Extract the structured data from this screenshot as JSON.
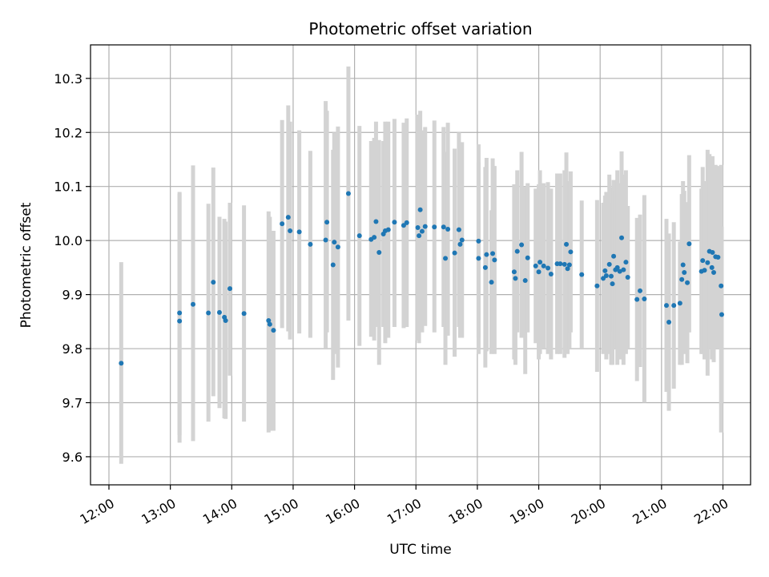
{
  "chart_data": {
    "type": "scatter",
    "title": "Photometric offset variation",
    "xlabel": "UTC time",
    "ylabel": "Photometric offset",
    "x_ticks": [
      "12:00",
      "13:00",
      "14:00",
      "15:00",
      "16:00",
      "17:00",
      "18:00",
      "19:00",
      "20:00",
      "21:00",
      "22:00"
    ],
    "y_ticks": [
      "9.6",
      "9.7",
      "9.8",
      "9.9",
      "10.0",
      "10.1",
      "10.2",
      "10.3"
    ],
    "xlim_hours": [
      11.7,
      22.45
    ],
    "ylim": [
      9.548,
      10.362
    ],
    "grid": true,
    "colors": {
      "points": "#1f77b4",
      "errorbars": "#d3d3d3",
      "grid": "#b0b0b0"
    },
    "series": [
      {
        "points": [
          [
            12.2,
            9.773,
            9.587,
            9.96
          ],
          [
            13.15,
            9.851,
            9.626,
            10.087
          ],
          [
            13.15,
            9.866,
            9.64,
            10.09
          ],
          [
            13.37,
            9.882,
            9.629,
            10.139
          ],
          [
            13.62,
            9.866,
            9.665,
            10.068
          ],
          [
            13.7,
            9.923,
            9.712,
            10.135
          ],
          [
            13.8,
            9.867,
            9.69,
            10.044
          ],
          [
            13.88,
            9.858,
            9.671,
            10.04
          ],
          [
            13.9,
            9.852,
            9.67,
            10.035
          ],
          [
            13.97,
            9.911,
            9.75,
            10.07
          ],
          [
            14.2,
            9.865,
            9.665,
            10.065
          ],
          [
            14.6,
            9.852,
            9.645,
            10.054
          ],
          [
            14.62,
            9.845,
            9.648,
            10.044
          ],
          [
            14.68,
            9.834,
            9.648,
            10.018
          ],
          [
            14.82,
            10.031,
            9.838,
            10.223
          ],
          [
            14.92,
            10.043,
            9.832,
            10.25
          ],
          [
            14.95,
            10.018,
            9.817,
            10.22
          ],
          [
            15.1,
            10.016,
            9.828,
            10.204
          ],
          [
            15.28,
            9.993,
            9.82,
            10.166
          ],
          [
            15.53,
            10.001,
            9.8,
            10.258
          ],
          [
            15.55,
            10.034,
            9.83,
            10.24
          ],
          [
            15.65,
            9.955,
            9.742,
            10.168
          ],
          [
            15.67,
            9.997,
            9.79,
            10.2
          ],
          [
            15.73,
            9.988,
            9.765,
            10.211
          ],
          [
            15.9,
            10.087,
            9.852,
            10.322
          ],
          [
            16.08,
            10.009,
            9.805,
            10.212
          ],
          [
            16.27,
            10.002,
            9.822,
            10.184
          ],
          [
            16.32,
            10.006,
            9.815,
            10.19
          ],
          [
            16.35,
            10.035,
            9.84,
            10.22
          ],
          [
            16.4,
            9.978,
            9.77,
            10.186
          ],
          [
            16.47,
            10.012,
            9.84,
            10.184
          ],
          [
            16.5,
            10.018,
            9.81,
            10.22
          ],
          [
            16.55,
            10.02,
            9.82,
            10.22
          ],
          [
            16.65,
            10.034,
            9.84,
            10.225
          ],
          [
            16.8,
            10.028,
            9.838,
            10.218
          ],
          [
            16.85,
            10.033,
            9.84,
            10.226
          ],
          [
            17.03,
            10.024,
            9.815,
            10.233
          ],
          [
            17.05,
            10.009,
            9.81,
            10.208
          ],
          [
            17.07,
            10.057,
            9.875,
            10.24
          ],
          [
            17.1,
            10.017,
            9.83,
            10.204
          ],
          [
            17.15,
            10.026,
            9.842,
            10.21
          ],
          [
            17.3,
            10.025,
            9.83,
            10.222
          ],
          [
            17.45,
            10.025,
            9.84,
            10.21
          ],
          [
            17.48,
            9.967,
            9.77,
            10.164
          ],
          [
            17.52,
            10.021,
            9.824,
            10.218
          ],
          [
            17.63,
            9.977,
            9.785,
            10.17
          ],
          [
            17.7,
            10.02,
            9.84,
            10.2
          ],
          [
            17.72,
            9.993,
            9.82,
            10.166
          ],
          [
            17.75,
            10.001,
            9.82,
            10.182
          ],
          [
            18.02,
            9.967,
            9.79,
            10.144
          ],
          [
            18.02,
            9.999,
            9.82,
            10.178
          ],
          [
            18.13,
            9.95,
            9.765,
            10.136
          ],
          [
            18.15,
            9.974,
            9.795,
            10.153
          ],
          [
            18.23,
            9.923,
            9.79,
            10.056
          ],
          [
            18.25,
            9.976,
            9.8,
            10.152
          ],
          [
            18.28,
            9.964,
            9.79,
            10.138
          ],
          [
            18.6,
            9.942,
            9.78,
            10.104
          ],
          [
            18.62,
            9.93,
            9.77,
            10.09
          ],
          [
            18.65,
            9.98,
            9.83,
            10.13
          ],
          [
            18.72,
            9.992,
            9.82,
            10.164
          ],
          [
            18.78,
            9.926,
            9.753,
            10.1
          ],
          [
            18.82,
            9.968,
            9.83,
            10.106
          ],
          [
            18.95,
            9.953,
            9.81,
            10.096
          ],
          [
            19.0,
            9.942,
            9.78,
            10.104
          ],
          [
            19.02,
            9.96,
            9.79,
            10.13
          ],
          [
            19.08,
            9.953,
            9.8,
            10.106
          ],
          [
            19.15,
            9.949,
            9.79,
            10.108
          ],
          [
            19.2,
            9.938,
            9.78,
            10.096
          ],
          [
            19.3,
            9.957,
            9.79,
            10.124
          ],
          [
            19.35,
            9.957,
            9.79,
            10.124
          ],
          [
            19.42,
            9.956,
            9.783,
            10.13
          ],
          [
            19.45,
            9.993,
            9.823,
            10.163
          ],
          [
            19.47,
            9.948,
            9.79,
            10.106
          ],
          [
            19.5,
            9.955,
            9.8,
            10.11
          ],
          [
            19.52,
            9.979,
            9.83,
            10.128
          ],
          [
            19.7,
            9.937,
            9.8,
            10.074
          ],
          [
            19.95,
            9.916,
            9.757,
            10.075
          ],
          [
            20.05,
            9.93,
            9.79,
            10.07
          ],
          [
            20.08,
            9.944,
            9.805,
            10.083
          ],
          [
            20.1,
            9.935,
            9.78,
            10.09
          ],
          [
            20.15,
            9.956,
            9.79,
            10.122
          ],
          [
            20.18,
            9.934,
            9.77,
            10.098
          ],
          [
            20.2,
            9.92,
            9.77,
            10.07
          ],
          [
            20.22,
            9.971,
            9.83,
            10.112
          ],
          [
            20.25,
            9.946,
            9.8,
            10.092
          ],
          [
            20.28,
            9.95,
            9.77,
            10.13
          ],
          [
            20.32,
            9.943,
            9.78,
            10.106
          ],
          [
            20.35,
            10.005,
            9.845,
            10.165
          ],
          [
            20.38,
            9.946,
            9.77,
            10.122
          ],
          [
            20.42,
            9.96,
            9.79,
            10.13
          ],
          [
            20.45,
            9.932,
            9.8,
            10.064
          ],
          [
            20.6,
            9.891,
            9.74,
            10.042
          ],
          [
            20.65,
            9.907,
            9.766,
            10.048
          ],
          [
            20.72,
            9.892,
            9.7,
            10.084
          ],
          [
            21.08,
            9.88,
            9.72,
            10.04
          ],
          [
            21.12,
            9.849,
            9.685,
            10.013
          ],
          [
            21.2,
            9.88,
            9.726,
            10.034
          ],
          [
            21.3,
            9.884,
            9.77,
            9.998
          ],
          [
            21.33,
            9.928,
            9.77,
            10.086
          ],
          [
            21.35,
            9.955,
            9.8,
            10.11
          ],
          [
            21.37,
            9.941,
            9.79,
            10.092
          ],
          [
            21.42,
            9.922,
            9.773,
            10.071
          ],
          [
            21.45,
            9.994,
            9.83,
            10.158
          ],
          [
            21.65,
            9.943,
            9.79,
            10.096
          ],
          [
            21.67,
            9.963,
            9.79,
            10.136
          ],
          [
            21.7,
            9.945,
            9.78,
            10.11
          ],
          [
            21.75,
            9.959,
            9.75,
            10.168
          ],
          [
            21.78,
            9.98,
            9.8,
            10.16
          ],
          [
            21.82,
            9.95,
            9.78,
            10.12
          ],
          [
            21.83,
            9.978,
            9.8,
            10.156
          ],
          [
            21.85,
            9.941,
            9.775,
            10.107
          ],
          [
            21.88,
            9.97,
            9.8,
            10.14
          ],
          [
            21.92,
            9.969,
            9.8,
            10.138
          ],
          [
            21.97,
            9.916,
            9.645,
            10.14
          ],
          [
            21.98,
            9.863,
            9.7,
            10.026
          ]
        ]
      }
    ]
  }
}
